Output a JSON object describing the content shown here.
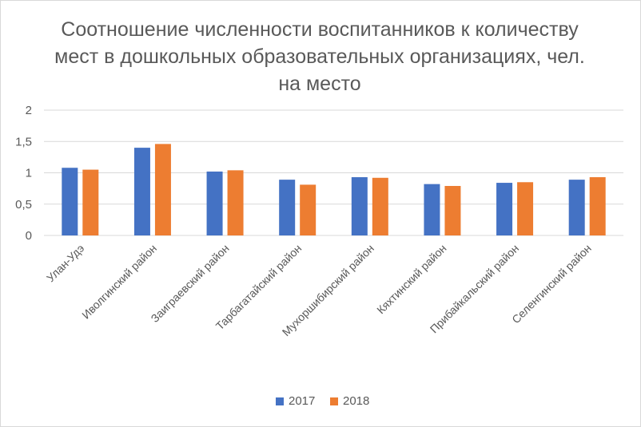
{
  "chart_data": {
    "type": "bar",
    "title": "Соотношение численности воспитанников к количеству мест в дошкольных образовательных организациях, чел. на место",
    "categories": [
      "Улан-Удэ",
      "Иволгинский район",
      "Заиграевский район",
      "Тарбагатайский район",
      "Мухоршибирский район",
      "Кяхтинский район",
      "Прибайкальский район",
      "Селенгинский район"
    ],
    "series": [
      {
        "name": "2017",
        "color": "#4472c4",
        "values": [
          1.08,
          1.4,
          1.02,
          0.89,
          0.93,
          0.82,
          0.84,
          0.89
        ]
      },
      {
        "name": "2018",
        "color": "#ed7d31",
        "values": [
          1.05,
          1.46,
          1.04,
          0.81,
          0.92,
          0.79,
          0.85,
          0.93
        ]
      }
    ],
    "yticks": [
      "0",
      "0,5",
      "1",
      "1,5",
      "2"
    ],
    "ylim": [
      0,
      2
    ],
    "grid": true,
    "legend": "bottom"
  }
}
